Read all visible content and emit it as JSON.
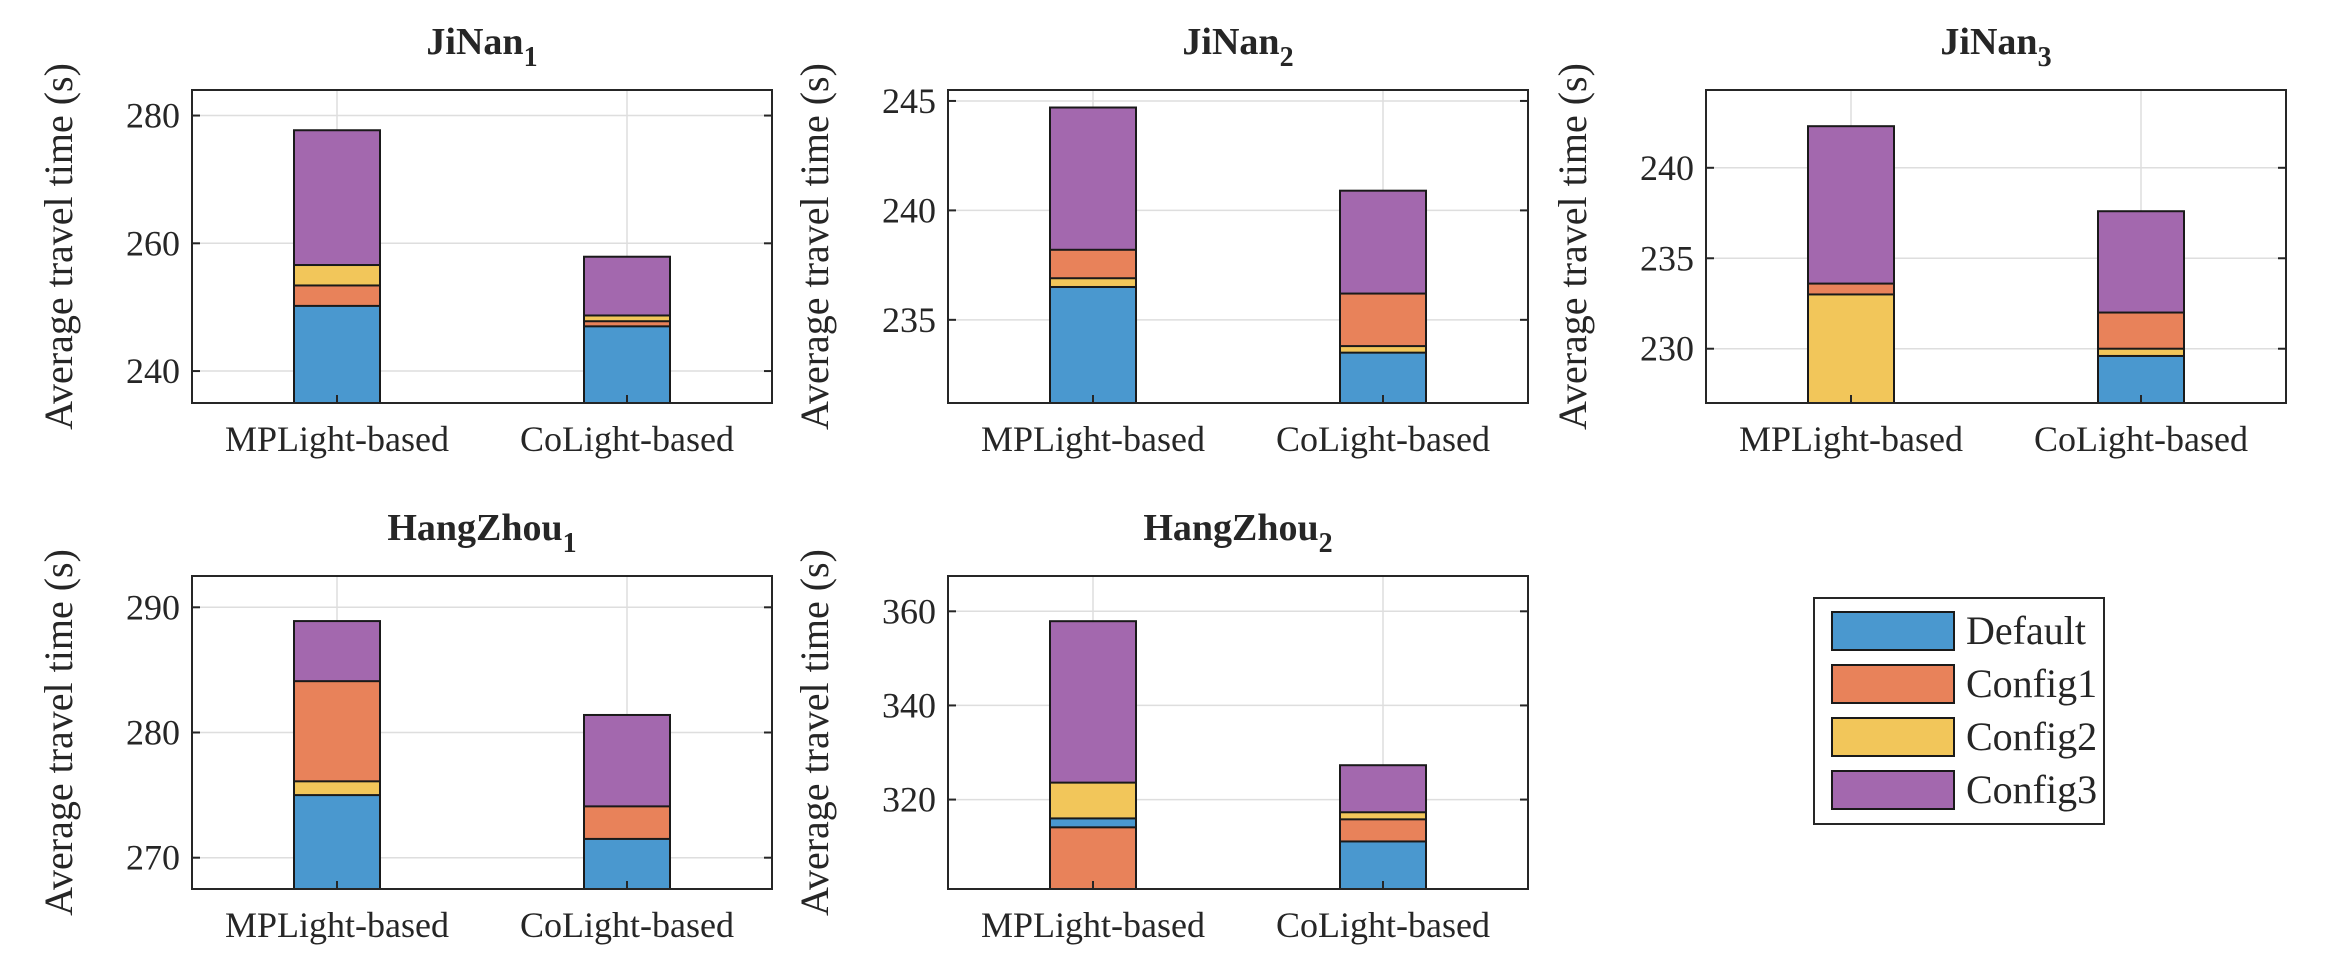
{
  "colors": {
    "Default": "#4a98cf",
    "Config1": "#e8825a",
    "Config2": "#f2c65a",
    "Config3": "#a368ae",
    "axis": "#262626",
    "grid": "#dedede"
  },
  "legend": {
    "items": [
      "Default",
      "Config1",
      "Config2",
      "Config3"
    ],
    "position": "bottom-right"
  },
  "chart_data": [
    {
      "type": "bar",
      "title": "JiNan",
      "title_sub": "1",
      "ylabel": "Average travel time (s)",
      "xlabel": "",
      "categories": [
        "MPLight-based",
        "CoLight-based"
      ],
      "ylim": [
        235,
        284
      ],
      "yticks": [
        240,
        260,
        280
      ],
      "series": [
        {
          "name": "Config3",
          "values": [
            277.7,
            257.9
          ]
        },
        {
          "name": "Config2",
          "values": [
            256.6,
            248.7
          ]
        },
        {
          "name": "Config1",
          "values": [
            253.4,
            247.8
          ]
        },
        {
          "name": "Default",
          "values": [
            250.2,
            247.0
          ]
        }
      ]
    },
    {
      "type": "bar",
      "title": "JiNan",
      "title_sub": "2",
      "ylabel": "Average travel time (s)",
      "xlabel": "",
      "categories": [
        "MPLight-based",
        "CoLight-based"
      ],
      "ylim": [
        231.2,
        245.5
      ],
      "yticks": [
        235,
        240,
        245
      ],
      "series": [
        {
          "name": "Config3",
          "values": [
            244.7,
            240.9
          ]
        },
        {
          "name": "Config1",
          "values": [
            238.2,
            236.2
          ]
        },
        {
          "name": "Config2",
          "values": [
            236.9,
            233.8
          ]
        },
        {
          "name": "Default",
          "values": [
            236.5,
            233.5
          ]
        }
      ]
    },
    {
      "type": "bar",
      "title": "JiNan",
      "title_sub": "3",
      "ylabel": "Average travel time (s)",
      "xlabel": "",
      "categories": [
        "MPLight-based",
        "CoLight-based"
      ],
      "ylim": [
        227,
        244.3
      ],
      "yticks": [
        230,
        235,
        240
      ],
      "series": [
        {
          "name": "Config3",
          "values": [
            242.3,
            237.6
          ]
        },
        {
          "name": "Config1",
          "values": [
            233.6,
            232.0
          ]
        },
        {
          "name": "Config2",
          "values": [
            233.0,
            230.0
          ]
        },
        {
          "name": "Default",
          "values": [
            null,
            229.6
          ]
        }
      ]
    },
    {
      "type": "bar",
      "title": "HangZhou",
      "title_sub": "1",
      "ylabel": "Average travel time (s)",
      "xlabel": "",
      "categories": [
        "MPLight-based",
        "CoLight-based"
      ],
      "ylim": [
        267.5,
        292.5
      ],
      "yticks": [
        270,
        280,
        290
      ],
      "series": [
        {
          "name": "Config3",
          "values": [
            288.9,
            281.4
          ]
        },
        {
          "name": "Config1",
          "values": [
            284.1,
            274.1
          ]
        },
        {
          "name": "Config2",
          "values": [
            276.1,
            null
          ]
        },
        {
          "name": "Default",
          "values": [
            275.0,
            271.5
          ]
        }
      ]
    },
    {
      "type": "bar",
      "title": "HangZhou",
      "title_sub": "2",
      "ylabel": "Average travel time (s)",
      "xlabel": "",
      "categories": [
        "MPLight-based",
        "CoLight-based"
      ],
      "ylim": [
        301,
        367.5
      ],
      "yticks": [
        320,
        340,
        360
      ],
      "series": [
        {
          "name": "Config3",
          "values": [
            357.9,
            327.3
          ]
        },
        {
          "name": "Config2",
          "values": [
            323.6,
            317.3
          ]
        },
        {
          "name": "Default",
          "values": [
            316.0,
            null
          ]
        },
        {
          "name": "Config1",
          "values": [
            314.1,
            315.8
          ]
        },
        {
          "name": "Default",
          "values": [
            null,
            311.1
          ]
        }
      ]
    }
  ]
}
